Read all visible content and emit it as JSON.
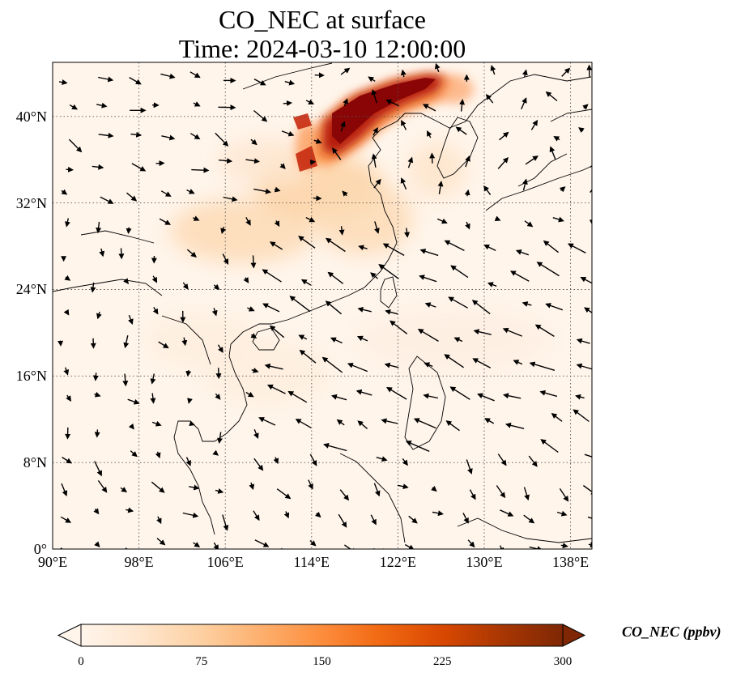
{
  "title": {
    "line1": "CO_NEC at surface",
    "line2": "Time: 2024-03-10 12:00:00"
  },
  "map": {
    "lon_range": [
      90,
      140
    ],
    "lat_range": [
      0,
      45
    ],
    "lon_ticks": [
      "90°E",
      "98°E",
      "106°E",
      "114°E",
      "122°E",
      "130°E",
      "138°E"
    ],
    "lat_ticks": [
      "0°",
      "8°N",
      "16°N",
      "24°N",
      "32°N",
      "40°N"
    ],
    "gridlines": true
  },
  "colorbar": {
    "label": "CO_NEC (ppbv)",
    "ticks": [
      "0",
      "75",
      "150",
      "225",
      "300"
    ],
    "range": [
      0,
      300
    ],
    "extend": "both",
    "colormap": [
      "#fff5eb",
      "#fee6ce",
      "#fdd0a2",
      "#fdae6b",
      "#fd8d3c",
      "#f16913",
      "#d94801",
      "#a63603",
      "#7f2704"
    ]
  }
}
